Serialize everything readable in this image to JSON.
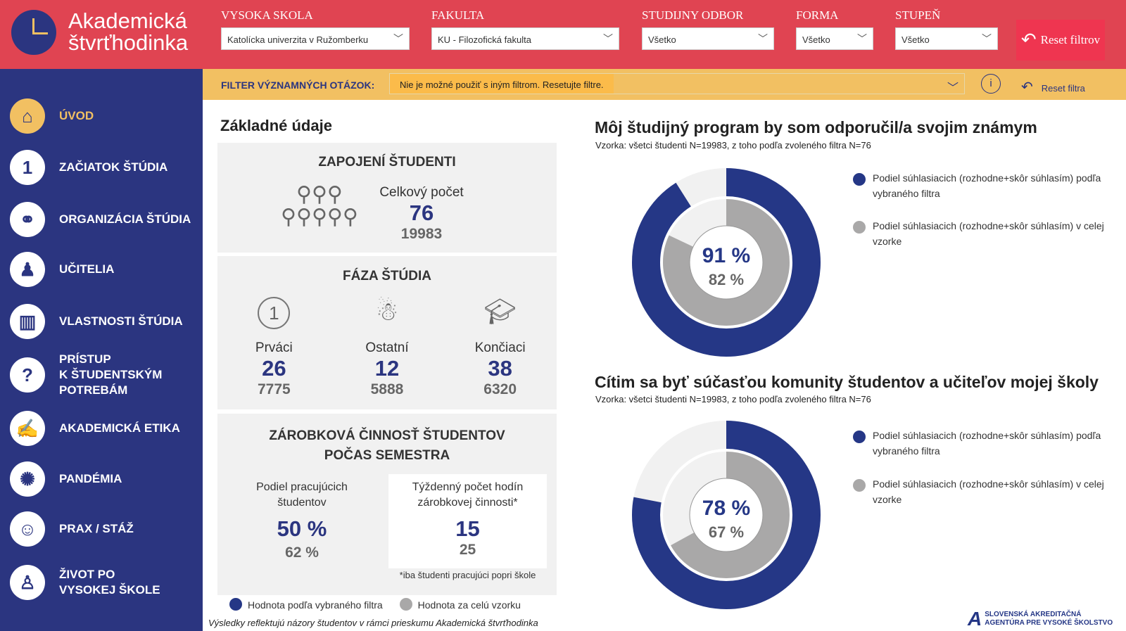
{
  "header": {
    "logo_line1": "Akademická",
    "logo_line2": "štvrťhodinka",
    "filters": [
      {
        "label": "VYSOKA SKOLA",
        "value": "Katolícka univerzita v Ružomberku"
      },
      {
        "label": "FAKULTA",
        "value": "KU - Filozofická fakulta"
      },
      {
        "label": "STUDIJNY ODBOR",
        "value": "Všetko"
      },
      {
        "label": "FORMA",
        "value": "Všetko"
      },
      {
        "label": "STUPEŇ",
        "value": "Všetko"
      }
    ],
    "reset_all": "Reset filtrov"
  },
  "question_filter": {
    "label": "FILTER VÝZNAMNÝCH OTÁZOK:",
    "value": "Nie je možné použiť s iným filtrom. Resetujte filtre.",
    "info": "i",
    "reset": "Reset filtra"
  },
  "sidebar": {
    "items": [
      {
        "label": "ÚVOD",
        "icon": "home-icon",
        "active": true
      },
      {
        "label": "ZAČIATOK ŠTÚDIA",
        "icon": "number-one-icon"
      },
      {
        "label": "ORGANIZÁCIA ŠTÚDIA",
        "icon": "network-icon"
      },
      {
        "label": "UČITELIA",
        "icon": "lectern-icon"
      },
      {
        "label": "VLASTNOSTI ŠTÚDIA",
        "icon": "books-icon"
      },
      {
        "label": "PRÍSTUP\nK ŠTUDENTSKÝM\nPOTREBÁM",
        "icon": "help-people-icon"
      },
      {
        "label": "AKADEMICKÁ ETIKA",
        "icon": "etika-icon"
      },
      {
        "label": "PANDÉMIA",
        "icon": "virus-icon"
      },
      {
        "label": "PRAX / STÁŽ",
        "icon": "worker-icon"
      },
      {
        "label": "ŽIVOT PO\nVYSOKEJ ŠKOLE",
        "icon": "graduate-icon"
      }
    ]
  },
  "basic": {
    "title": "Základné údaje",
    "students": {
      "title": "ZAPOJENÍ ŠTUDENTI",
      "label": "Celkový počet",
      "value": "76",
      "total": "19983"
    },
    "phase": {
      "title": "FÁZA ŠTÚDIA",
      "items": [
        {
          "label": "Prváci",
          "value": "26",
          "total": "7775"
        },
        {
          "label": "Ostatní",
          "value": "12",
          "total": "5888"
        },
        {
          "label": "Končiaci",
          "value": "38",
          "total": "6320"
        }
      ]
    },
    "work": {
      "title": "ZÁROBKOVÁ ČINNOSŤ ŠTUDENTOV POČAS SEMESTRA",
      "share_label": "Podiel pracujúcich študentov",
      "share_value": "50 %",
      "share_total": "62 %",
      "hours_label": "Týždenný počet hodín zárobkovej činnosti*",
      "hours_value": "15",
      "hours_total": "25",
      "note": "*iba študenti pracujúci popri škole"
    },
    "legend_selected": "Hodnota podľa vybraného filtra",
    "legend_all": "Hodnota za celú vzorku",
    "footer": "Výsledky reflektujú názory študentov v rámci prieskumu Akademická štvrťhodinka"
  },
  "chart_data": [
    {
      "type": "donut",
      "title": "Môj študijný program by som odporučil/a svojim známym",
      "subtitle": "Vzorka: všetci študenti N=19983, z toho podľa zvoleného filtra N=76",
      "series": [
        {
          "name": "Podiel súhlasiacich (rozhodne+skôr súhlasím) podľa vybraného filtra",
          "value": 91,
          "label": "91 %",
          "color": "#253786"
        },
        {
          "name": "Podiel súhlasiacich (rozhodne+skôr súhlasím) v celej vzorke",
          "value": 82,
          "label": "82 %",
          "color": "#a9a8a8"
        }
      ]
    },
    {
      "type": "donut",
      "title": "Cítim sa byť súčasťou komunity študentov a učiteľov mojej školy",
      "subtitle": "Vzorka: všetci študenti N=19983, z toho podľa zvoleného filtra N=76",
      "series": [
        {
          "name": "Podiel súhlasiacich (rozhodne+skôr súhlasím) podľa vybraného filtra",
          "value": 78,
          "label": "78 %",
          "color": "#253786"
        },
        {
          "name": "Podiel súhlasiacich (rozhodne+skôr súhlasím) v celej vzorke",
          "value": 67,
          "label": "67 %",
          "color": "#a9a8a8"
        }
      ]
    }
  ],
  "agency_logo": "SLOVENSKÁ AKREDITAČNÁ AGENTÚRA PRE VYSOKÉ ŠKOLSTVO"
}
